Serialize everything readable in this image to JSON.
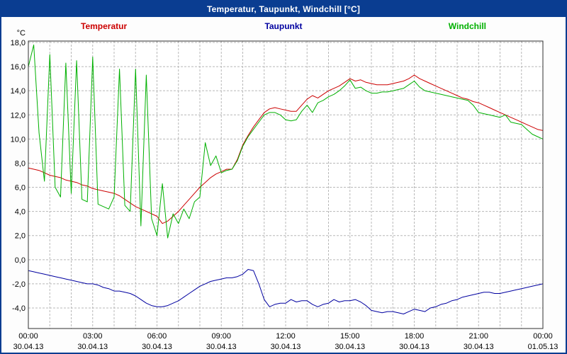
{
  "window": {
    "title": "Temperatur, Taupunkt, Windchill [°C]"
  },
  "chart_data": {
    "type": "line",
    "title": "Temperatur, Taupunkt, Windchill [°C]",
    "ylabel": "°C",
    "xlabel": "",
    "ylim": [
      -5.7,
      18.1
    ],
    "grid": true,
    "legend_position": "top",
    "sample_interval_minutes": 15,
    "x_hours_range": [
      0,
      24
    ],
    "y_tick_values": [
      18,
      16,
      14,
      12,
      10,
      8,
      6,
      4,
      2,
      0,
      -2,
      -4
    ],
    "y_tick_labels": [
      "18,0",
      "16,0",
      "14,0",
      "12,0",
      "10,0",
      "8,0",
      "6,0",
      "4,0",
      "2,0",
      "0,0",
      "-2,0",
      "-4,0"
    ],
    "x_ticks": [
      {
        "hour": 0,
        "time": "00:00",
        "date": "30.04.13"
      },
      {
        "hour": 3,
        "time": "03:00",
        "date": "30.04.13"
      },
      {
        "hour": 6,
        "time": "06:00",
        "date": "30.04.13"
      },
      {
        "hour": 9,
        "time": "09:00",
        "date": "30.04.13"
      },
      {
        "hour": 12,
        "time": "12:00",
        "date": "30.04.13"
      },
      {
        "hour": 15,
        "time": "15:00",
        "date": "30.04.13"
      },
      {
        "hour": 18,
        "time": "18:00",
        "date": "30.04.13"
      },
      {
        "hour": 21,
        "time": "21:00",
        "date": "30.04.13"
      },
      {
        "hour": 24,
        "time": "00:00",
        "date": "01.05.13"
      }
    ],
    "series": [
      {
        "name": "Temperatur",
        "color": "#cc0000",
        "values": [
          7.6,
          7.5,
          7.4,
          7.2,
          7.0,
          6.9,
          6.8,
          6.6,
          6.5,
          6.4,
          6.2,
          6.1,
          5.9,
          5.8,
          5.7,
          5.6,
          5.5,
          5.3,
          5.0,
          4.7,
          4.4,
          4.2,
          4.0,
          3.8,
          3.6,
          3.0,
          3.2,
          3.6,
          4.0,
          4.5,
          5.0,
          5.5,
          6.0,
          6.4,
          6.8,
          7.1,
          7.3,
          7.5,
          7.5,
          8.3,
          9.5,
          10.3,
          11.0,
          11.6,
          12.2,
          12.5,
          12.6,
          12.5,
          12.4,
          12.3,
          12.3,
          12.8,
          13.3,
          13.6,
          13.4,
          13.7,
          14.0,
          14.2,
          14.4,
          14.7,
          15.0,
          14.8,
          14.9,
          14.7,
          14.6,
          14.5,
          14.5,
          14.5,
          14.6,
          14.7,
          14.8,
          15.0,
          15.3,
          15.0,
          14.8,
          14.6,
          14.4,
          14.2,
          14.0,
          13.8,
          13.6,
          13.4,
          13.3,
          13.1,
          13.0,
          12.8,
          12.6,
          12.4,
          12.2,
          12.0,
          11.8,
          11.6,
          11.4,
          11.2,
          11.0,
          10.8,
          10.7
        ]
      },
      {
        "name": "Taupunkt",
        "color": "#0000a0",
        "values": [
          -0.9,
          -1.0,
          -1.1,
          -1.2,
          -1.3,
          -1.4,
          -1.5,
          -1.6,
          -1.7,
          -1.8,
          -1.9,
          -2.0,
          -2.0,
          -2.1,
          -2.3,
          -2.4,
          -2.6,
          -2.6,
          -2.7,
          -2.8,
          -3.0,
          -3.3,
          -3.6,
          -3.8,
          -3.9,
          -3.9,
          -3.8,
          -3.6,
          -3.4,
          -3.1,
          -2.8,
          -2.5,
          -2.2,
          -2.0,
          -1.8,
          -1.7,
          -1.6,
          -1.5,
          -1.5,
          -1.4,
          -1.2,
          -0.8,
          -0.9,
          -2.0,
          -3.3,
          -3.9,
          -3.7,
          -3.6,
          -3.6,
          -3.3,
          -3.5,
          -3.4,
          -3.4,
          -3.7,
          -3.9,
          -3.7,
          -3.6,
          -3.3,
          -3.5,
          -3.4,
          -3.4,
          -3.3,
          -3.5,
          -3.8,
          -4.2,
          -4.3,
          -4.4,
          -4.3,
          -4.3,
          -4.4,
          -4.5,
          -4.3,
          -4.1,
          -4.2,
          -4.3,
          -4.0,
          -3.9,
          -3.7,
          -3.6,
          -3.4,
          -3.3,
          -3.1,
          -3.0,
          -2.9,
          -2.8,
          -2.7,
          -2.7,
          -2.8,
          -2.8,
          -2.7,
          -2.6,
          -2.5,
          -2.4,
          -2.3,
          -2.2,
          -2.1,
          -2.0
        ]
      },
      {
        "name": "Windchill",
        "color": "#00b000",
        "values": [
          16.0,
          17.8,
          10.5,
          6.5,
          17.0,
          6.0,
          5.2,
          16.3,
          5.5,
          16.5,
          5.0,
          4.8,
          16.8,
          4.6,
          4.4,
          4.2,
          5.2,
          15.8,
          4.5,
          4.0,
          15.8,
          2.8,
          15.3,
          3.4,
          2.0,
          6.3,
          1.8,
          3.8,
          3.0,
          4.2,
          3.4,
          4.8,
          5.2,
          9.7,
          7.8,
          8.6,
          7.2,
          7.4,
          7.5,
          8.2,
          9.4,
          10.2,
          10.8,
          11.4,
          12.0,
          12.2,
          12.2,
          12.0,
          11.6,
          11.5,
          11.6,
          12.3,
          12.8,
          12.2,
          13.0,
          13.2,
          13.5,
          13.7,
          14.0,
          14.4,
          14.9,
          14.2,
          14.3,
          14.0,
          13.8,
          13.8,
          13.9,
          13.9,
          14.0,
          14.1,
          14.2,
          14.5,
          14.8,
          14.3,
          14.0,
          13.9,
          13.8,
          13.7,
          13.6,
          13.5,
          13.4,
          13.3,
          13.2,
          12.8,
          12.2,
          12.1,
          12.0,
          11.9,
          11.8,
          12.0,
          11.4,
          11.3,
          11.2,
          10.8,
          10.4,
          10.2,
          10.0
        ]
      }
    ]
  },
  "colors": {
    "titlebar_bg": "#0a3d91",
    "titlebar_text": "#ffffff",
    "grid": "#b8b8b8",
    "axis_frame": "#303030",
    "plot_bg": "#ffffff"
  }
}
